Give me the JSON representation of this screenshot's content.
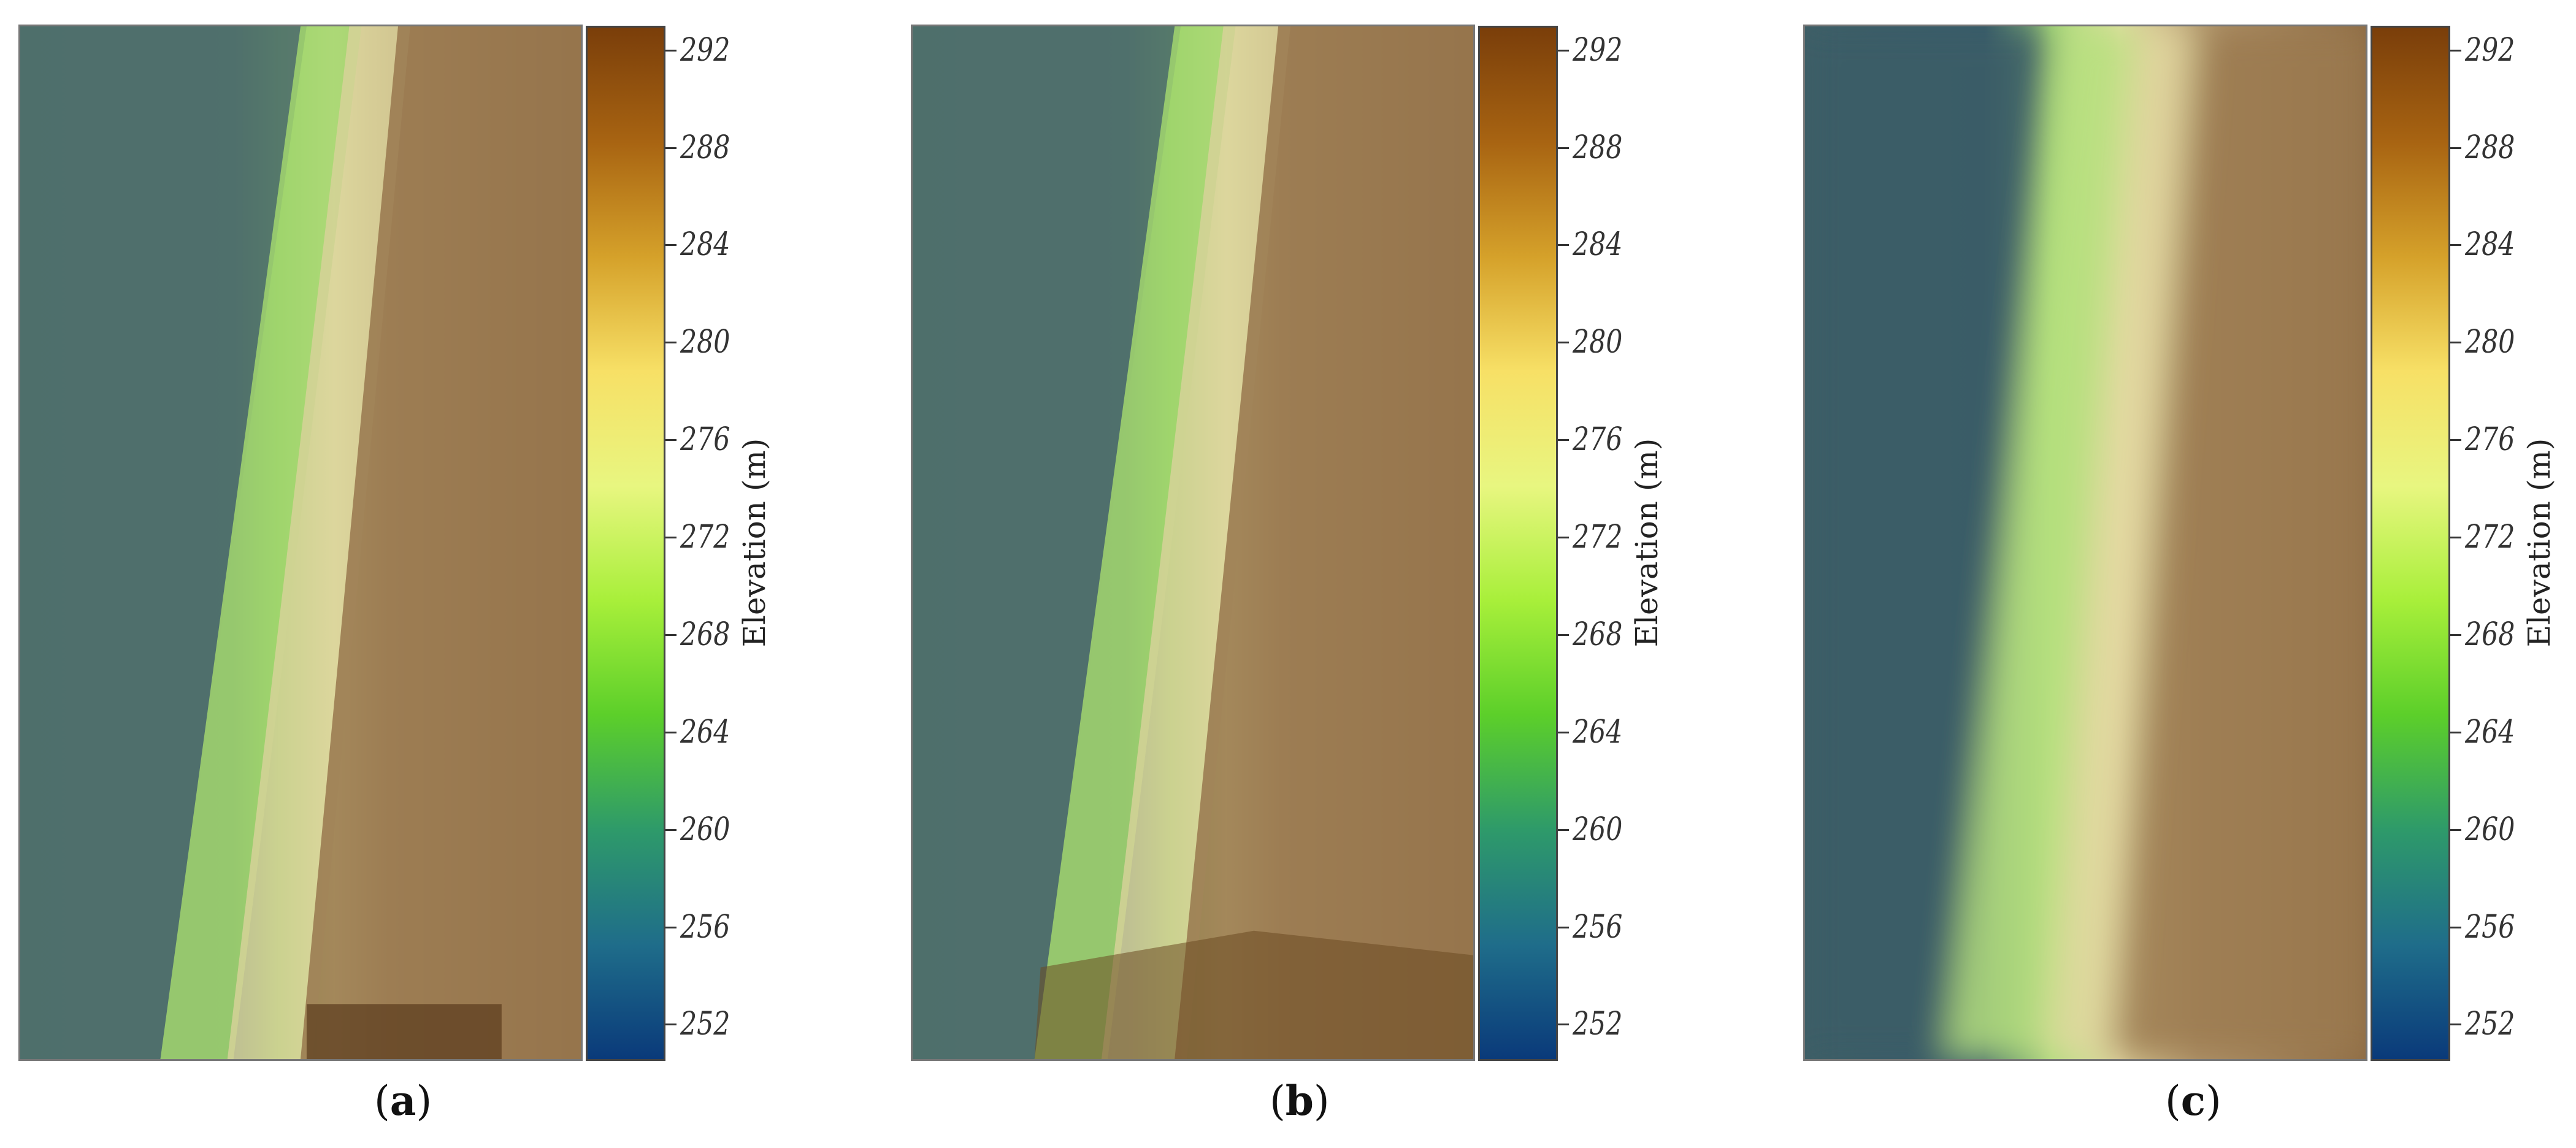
{
  "chart_data": [
    {
      "type": "heatmap",
      "panel_label": "a",
      "colorbar_label": "Elevation (m)",
      "colorbar_ticks": [
        292,
        288,
        284,
        280,
        276,
        272,
        268,
        264,
        260,
        256,
        252
      ],
      "colorbar_range": [
        250.5,
        293
      ],
      "colormap": [
        "#0a3a7a",
        "#1f6d8a",
        "#2e9a6a",
        "#5ccf2a",
        "#a8ef3a",
        "#e8f680",
        "#f7e066",
        "#d5a12a",
        "#a86412",
        "#7a3e0a"
      ]
    },
    {
      "type": "heatmap",
      "panel_label": "b",
      "colorbar_label": "Elevation (m)",
      "colorbar_ticks": [
        292,
        288,
        284,
        280,
        276,
        272,
        268,
        264,
        260,
        256,
        252
      ],
      "colorbar_range": [
        250.5,
        293
      ],
      "colormap": [
        "#0a3a7a",
        "#1f6d8a",
        "#2e9a6a",
        "#5ccf2a",
        "#a8ef3a",
        "#e8f680",
        "#f7e066",
        "#d5a12a",
        "#a86412",
        "#7a3e0a"
      ]
    },
    {
      "type": "heatmap",
      "panel_label": "c",
      "colorbar_label": "Elevation (m)",
      "colorbar_ticks": [
        292,
        288,
        284,
        280,
        276,
        272,
        268,
        264,
        260,
        256,
        252
      ],
      "colorbar_range": [
        250.5,
        293
      ],
      "colormap": [
        "#0a3a7a",
        "#1f6d8a",
        "#2e9a6a",
        "#5ccf2a",
        "#a8ef3a",
        "#e8f680",
        "#f7e066",
        "#d5a12a",
        "#a86412",
        "#7a3e0a"
      ]
    }
  ]
}
